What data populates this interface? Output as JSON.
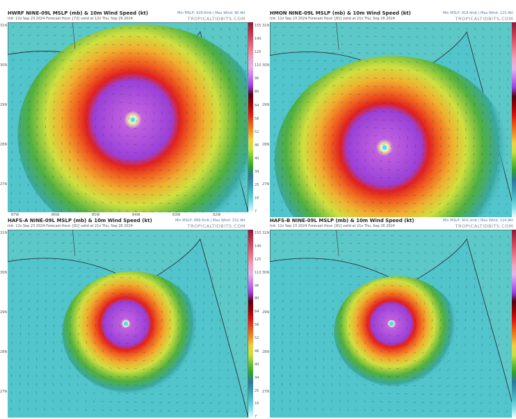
{
  "panels": [
    {
      "title": "HWRF NINE-09L MSLP (mb) & 10m Wind Speed (kt)",
      "init": "Init: 12z Sep 23 2024   Forecast Hour: [72]   valid at 12z Thu, Sep 26 2024",
      "stats": "Min MSLP: 929.6mb | Max Wind: 96.4kt",
      "site": "TROPICALTIDBITS.COM"
    },
    {
      "title": "HMON NINE-09L MSLP (mb) & 10m Wind Speed (kt)",
      "init": "Init: 12z Sep 23 2024   Forecast Hour: [81]   valid at 21z Thu, Sep 26 2024",
      "stats": "Min MSLP: 918.4mb | Max Wind: 123.4kt",
      "site": "TROPICALTIDBITS.COM"
    },
    {
      "title": "HAFS-A NINE-09L MSLP (mb) & 10m Wind Speed (kt)",
      "init": "Init: 12z Sep 23 2024   Forecast Hour: [81]   valid at 21z Thu, Sep 26 2024",
      "stats": "Min MSLP: 899.5mb | Max Wind: 152.4kt",
      "site": "TROPICALTIDBITS.COM"
    },
    {
      "title": "HAFS-B NINE-09L MSLP (mb) & 10m Wind Speed (kt)",
      "init": "Init: 12z Sep 23 2024   Forecast Hour: [81]   valid at 21z Thu, Sep 26 2024",
      "stats": "Min MSLP: 910.2mb | Max Wind: 114.9kt",
      "site": "TROPICALTIDBITS.COM"
    }
  ],
  "colorbar": {
    "labels": [
      "155",
      "140",
      "125",
      "110",
      "96",
      "80",
      "64",
      "58",
      "52",
      "46",
      "40",
      "34",
      "25",
      "16",
      "7"
    ],
    "colors": [
      "#8b1a3a",
      "#c0304a",
      "#e0506a",
      "#f07a90",
      "#f4a0c0",
      "#e8b0e8",
      "#c878e8",
      "#a040e0",
      "#5a0010",
      "#a00000",
      "#e01010",
      "#f05010",
      "#f09020",
      "#f0d040",
      "#c8e040",
      "#70c030",
      "#30a030",
      "#2a7a9a",
      "#3a9ab0",
      "#50c0cc",
      "#80e0e8",
      "#e8ffff"
    ]
  },
  "lat_labels": [
    "31N",
    "30N",
    "29N",
    "28N",
    "27N"
  ],
  "lon_labels": [
    "87W",
    "86W",
    "85W",
    "84W",
    "83W",
    "82W"
  ]
}
